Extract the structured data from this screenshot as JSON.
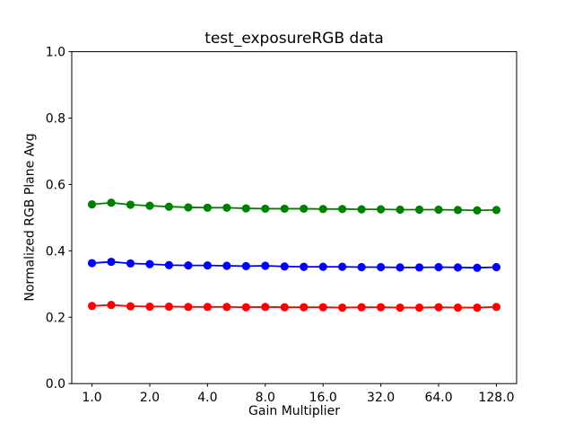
{
  "chart_data": {
    "type": "line",
    "title": "test_exposureRGB data",
    "xlabel": "Gain Multiplier",
    "ylabel": "Normalized RGB Plane Avg",
    "x_scale": "log2",
    "xlim_log2": [
      -0.35,
      7.35
    ],
    "ylim": [
      0.0,
      1.0
    ],
    "grid": false,
    "legend": "none",
    "x_tick_values": [
      1.0,
      2.0,
      4.0,
      8.0,
      16.0,
      32.0,
      64.0,
      128.0
    ],
    "x_tick_labels": [
      "1.0",
      "2.0",
      "4.0",
      "8.0",
      "16.0",
      "32.0",
      "64.0",
      "128.0"
    ],
    "y_tick_values": [
      0.0,
      0.2,
      0.4,
      0.6,
      0.8,
      1.0
    ],
    "y_tick_labels": [
      "0.0",
      "0.2",
      "0.4",
      "0.6",
      "0.8",
      "1.0"
    ],
    "x": [
      1.0,
      1.2599,
      1.5874,
      2.0,
      2.5198,
      3.1748,
      4.0,
      5.0397,
      6.3496,
      8.0,
      10.0794,
      12.6992,
      16.0,
      20.1587,
      25.3984,
      32.0,
      40.3175,
      50.7968,
      64.0,
      80.6349,
      101.5937,
      128.0
    ],
    "series": [
      {
        "name": "green-plane",
        "color": "#008000",
        "values": [
          0.54,
          0.545,
          0.539,
          0.536,
          0.533,
          0.531,
          0.53,
          0.53,
          0.528,
          0.527,
          0.527,
          0.527,
          0.526,
          0.526,
          0.525,
          0.525,
          0.524,
          0.524,
          0.524,
          0.523,
          0.522,
          0.523
        ]
      },
      {
        "name": "blue-plane",
        "color": "#0000ff",
        "values": [
          0.363,
          0.367,
          0.362,
          0.36,
          0.357,
          0.356,
          0.356,
          0.355,
          0.354,
          0.355,
          0.353,
          0.352,
          0.352,
          0.352,
          0.351,
          0.351,
          0.35,
          0.35,
          0.351,
          0.35,
          0.349,
          0.351
        ]
      },
      {
        "name": "red-plane",
        "color": "#ff0000",
        "values": [
          0.234,
          0.237,
          0.233,
          0.232,
          0.232,
          0.231,
          0.231,
          0.231,
          0.23,
          0.231,
          0.23,
          0.23,
          0.23,
          0.229,
          0.23,
          0.23,
          0.229,
          0.229,
          0.23,
          0.229,
          0.229,
          0.231
        ]
      }
    ]
  },
  "colors": {
    "background": "#ffffff",
    "axes": "#000000"
  }
}
